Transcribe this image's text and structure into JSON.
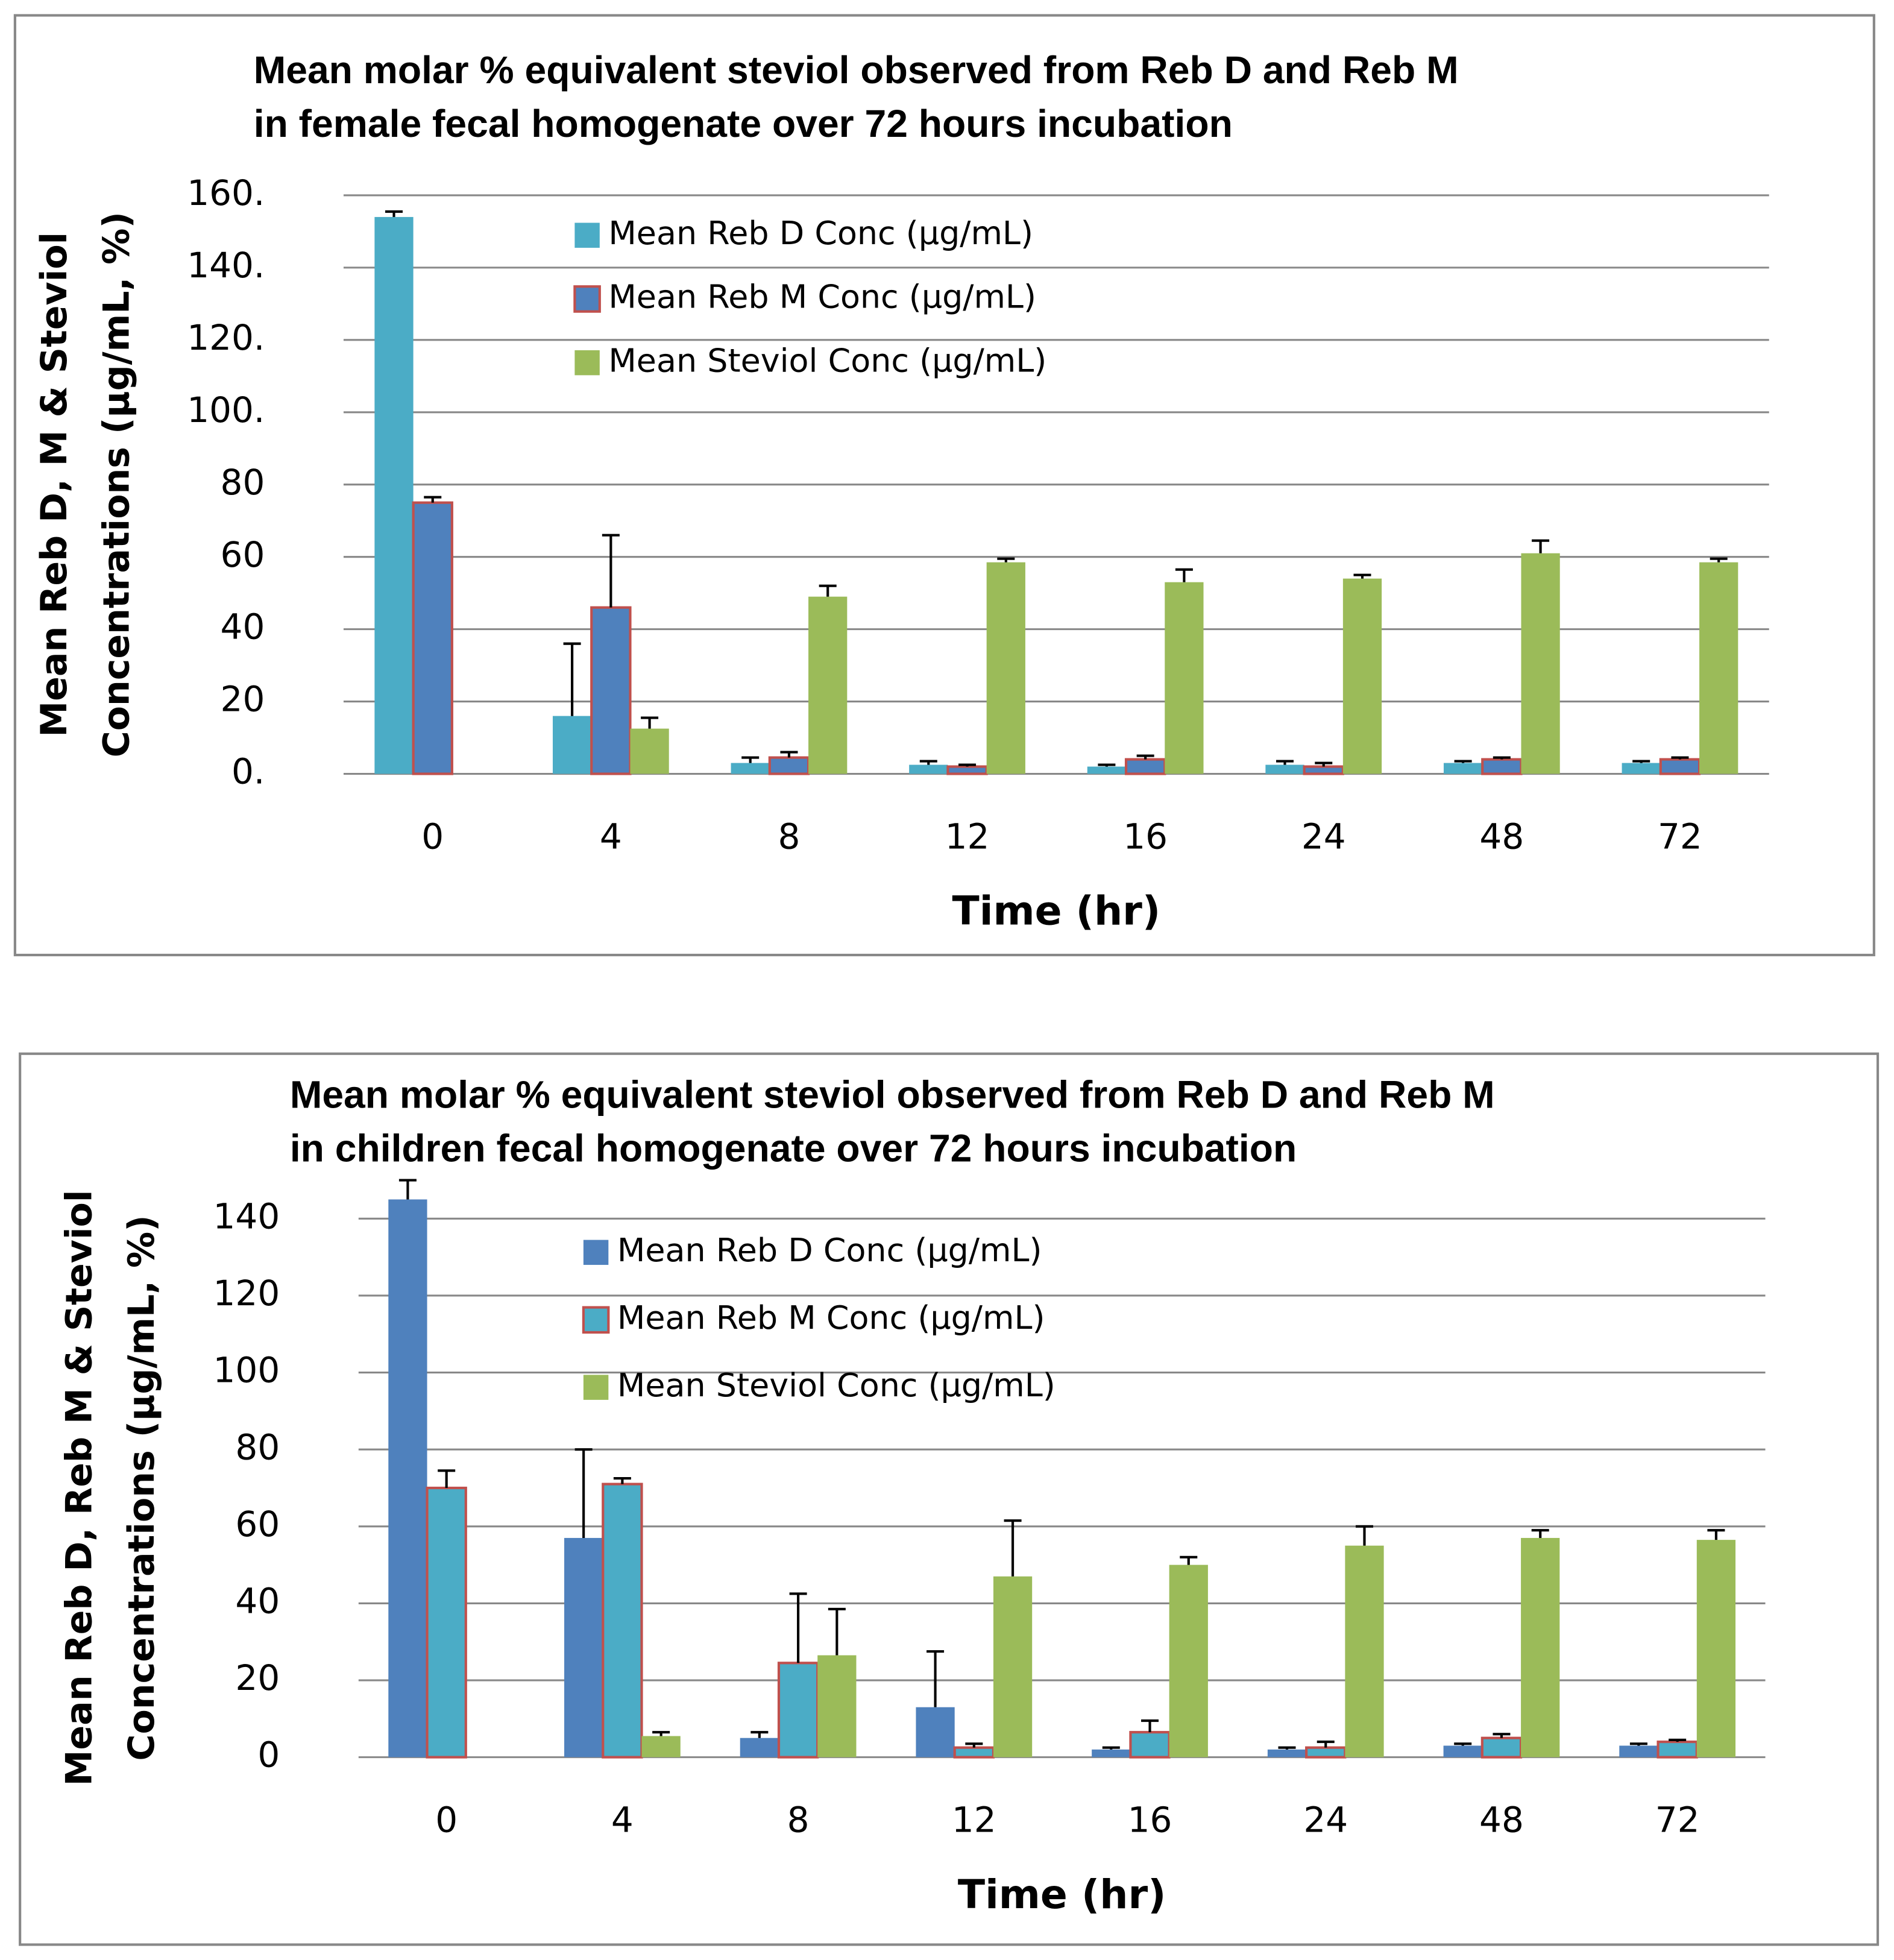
{
  "chart_data": [
    {
      "type": "bar",
      "title": [
        "Mean molar % equivalent steviol observed from Reb D and Reb M",
        "in female fecal homogenate over 72 hours incubation"
      ],
      "ylabel": [
        "Mean Reb D, M & Steviol",
        "Concentrations (µg/mL, %)"
      ],
      "xlabel": "Time (hr)",
      "categories": [
        "0",
        "4",
        "8",
        "12",
        "16",
        "24",
        "48",
        "72"
      ],
      "series": [
        {
          "name": "Mean Reb D Conc (µg/mL)",
          "color": "#4bacc6",
          "values": [
            154,
            16,
            3,
            2.5,
            2,
            2.5,
            3,
            3
          ],
          "errors": [
            1.5,
            20,
            1.5,
            1,
            0.5,
            1,
            0.5,
            0.5
          ]
        },
        {
          "name": "Mean Reb M Conc (µg/mL)",
          "color": "#4f81bd",
          "edgecolor": "#c0504d",
          "values": [
            75,
            46,
            4.5,
            2,
            4,
            2,
            4,
            4
          ],
          "errors": [
            1.5,
            20,
            1.5,
            0.5,
            1,
            1,
            0.5,
            0.5
          ]
        },
        {
          "name": "Mean Steviol Conc (µg/mL)",
          "color": "#9bbb59",
          "values": [
            null,
            12.5,
            49,
            58.5,
            53,
            54,
            61,
            58.5
          ],
          "errors": [
            null,
            3,
            3,
            1,
            3.5,
            1,
            3.5,
            1
          ]
        }
      ],
      "ylim": [
        0,
        160
      ],
      "yticks": [
        {
          "value": 0,
          "label": "0."
        },
        20,
        40,
        60,
        80,
        {
          "value": 100,
          "label": "100."
        },
        {
          "value": 120,
          "label": "120."
        },
        {
          "value": 140,
          "label": "140."
        },
        {
          "value": 160,
          "label": "160."
        }
      ],
      "grid": true
    },
    {
      "type": "bar",
      "title": [
        "Mean molar % equivalent steviol observed from Reb D and Reb M",
        "in children fecal homogenate over 72 hours incubation"
      ],
      "ylabel": [
        "Mean Reb D, Reb M & Steviol",
        "Concentrations (µg/mL, %)"
      ],
      "xlabel": "Time (hr)",
      "categories": [
        "0",
        "4",
        "8",
        "12",
        "16",
        "24",
        "48",
        "72"
      ],
      "series": [
        {
          "name": "Mean Reb D Conc (µg/mL)",
          "color": "#4f81bd",
          "values": [
            145,
            57,
            5,
            13,
            2,
            2,
            3,
            3
          ],
          "errors": [
            5,
            23,
            1.5,
            14.5,
            0.5,
            0.5,
            0.5,
            0.5
          ]
        },
        {
          "name": "Mean Reb M Conc (µg/mL)",
          "color": "#4bacc6",
          "edgecolor": "#c0504d",
          "values": [
            70,
            71,
            24.5,
            2.5,
            6.5,
            2.5,
            5,
            4
          ],
          "errors": [
            4.5,
            1.5,
            18,
            1,
            3,
            1.5,
            1,
            0.5
          ]
        },
        {
          "name": "Mean Steviol Conc (µg/mL)",
          "color": "#9bbb59",
          "values": [
            null,
            5.5,
            26.5,
            47,
            50,
            55,
            57,
            56.5
          ],
          "errors": [
            null,
            1,
            12,
            14.5,
            2,
            5,
            2,
            2.5
          ]
        }
      ],
      "ylim": [
        0,
        140
      ],
      "yticks": [
        0,
        20,
        40,
        60,
        80,
        100,
        120,
        140
      ],
      "grid": true
    }
  ]
}
